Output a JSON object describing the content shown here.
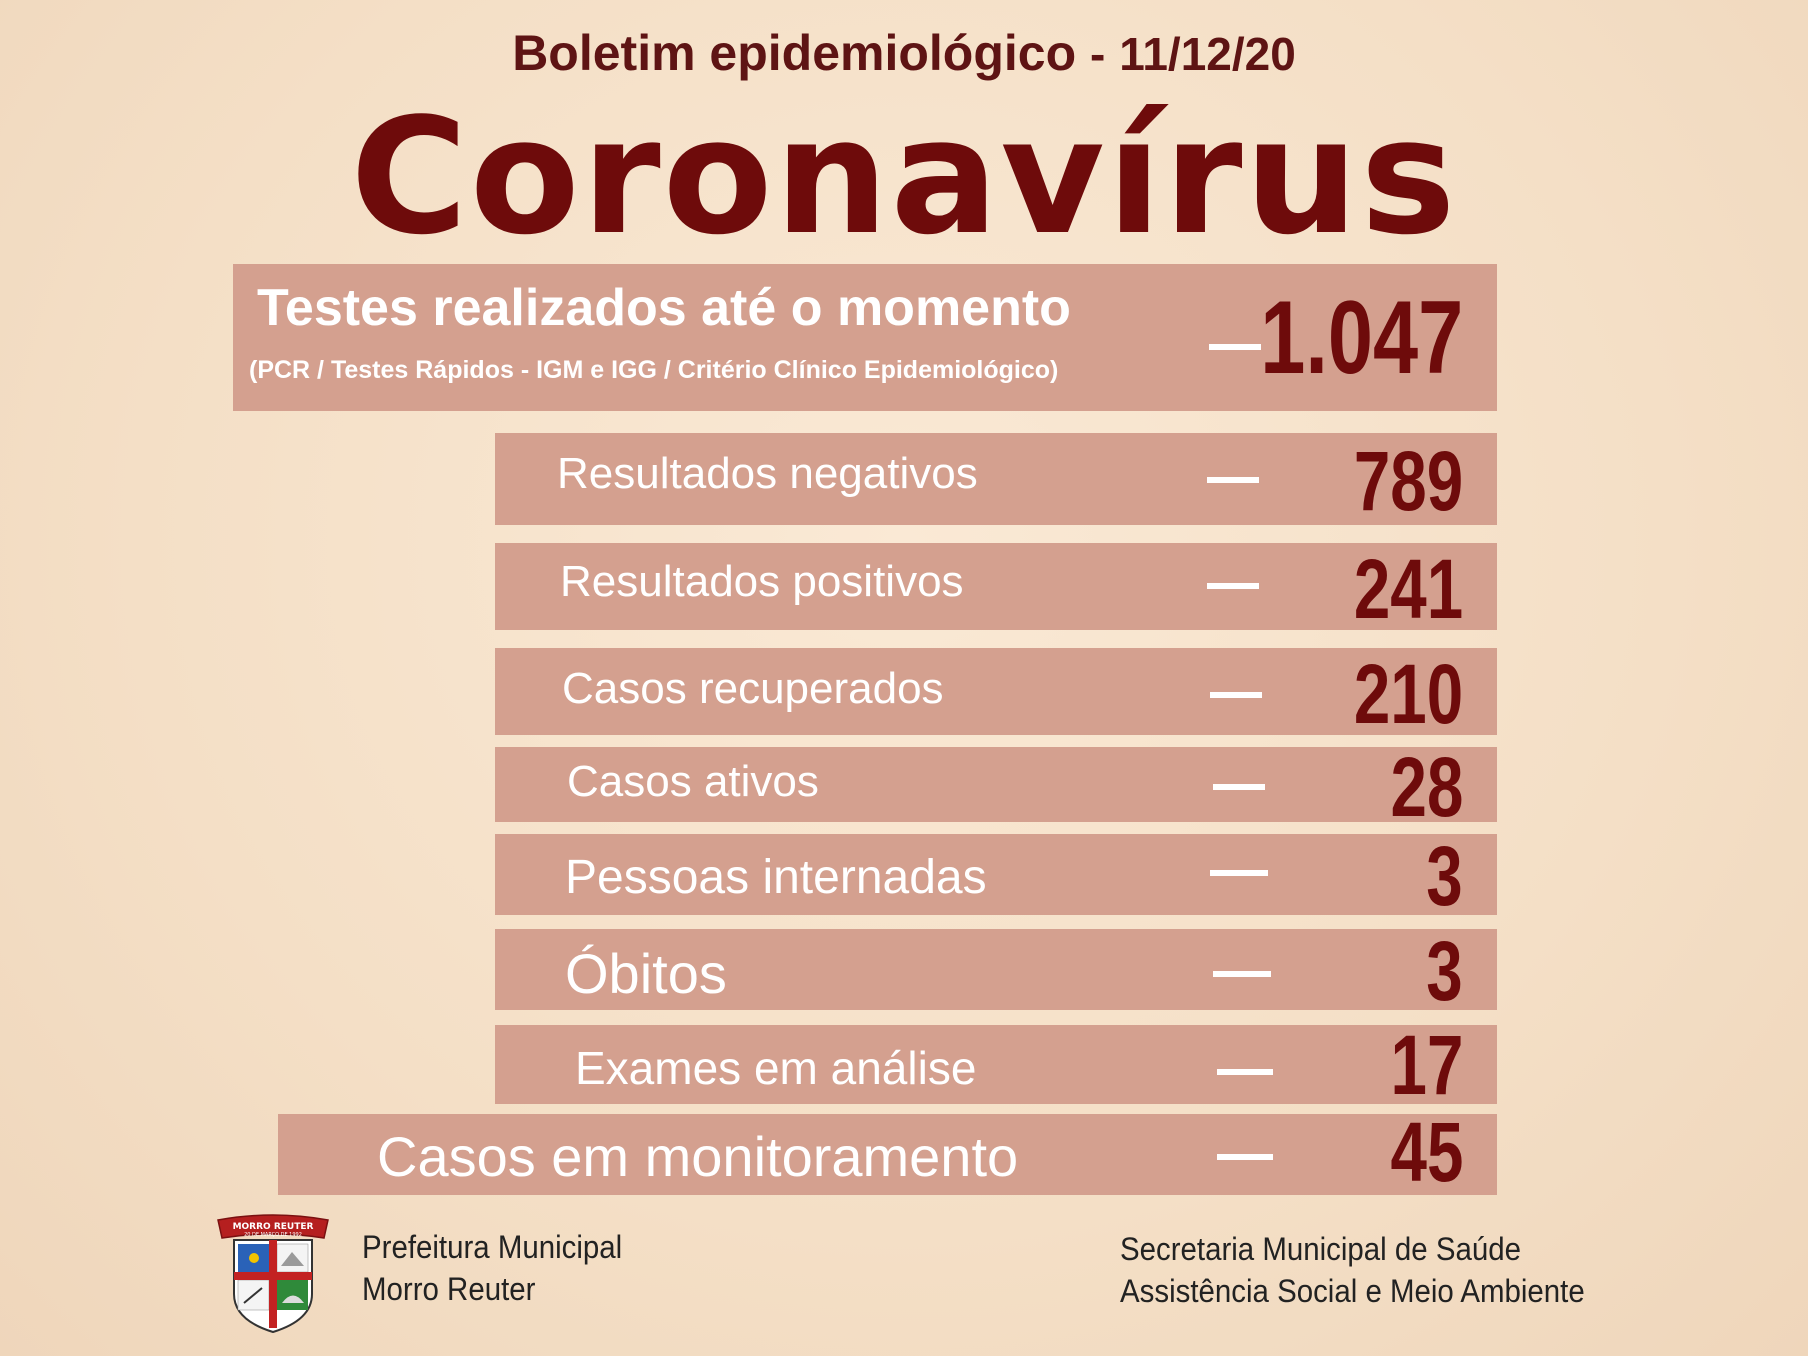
{
  "header": {
    "subtitle": "Boletim epidemiológico",
    "separator": "-",
    "date": "11/12/20",
    "title": "Coronavírus"
  },
  "tests": {
    "label": "Testes realizados até o momento",
    "note": "(PCR / Testes Rápidos - IGM e IGG / Critério Clínico Epidemiológico)",
    "value": "1.047"
  },
  "rows": [
    {
      "label": "Resultados negativos",
      "value": "789"
    },
    {
      "label": "Resultados positivos",
      "value": "241"
    },
    {
      "label": "Casos recuperados",
      "value": "210"
    },
    {
      "label": "Casos ativos",
      "value": "28"
    },
    {
      "label": "Pessoas internadas",
      "value": "3"
    },
    {
      "label": "Óbitos",
      "value": "3"
    },
    {
      "label": "Exames em análise",
      "value": "17"
    },
    {
      "label": "Casos em monitoramento",
      "value": "45"
    }
  ],
  "footer": {
    "left_line1": "Prefeitura Municipal",
    "left_line2": "Morro Reuter",
    "right_line1": "Secretaria Municipal de Saúde",
    "right_line2": "Assistência Social e Meio Ambiente",
    "crest_banner": "MORRO REUTER",
    "crest_date": "20 DE MARÇO DE 1992"
  },
  "colors": {
    "background": "#f6e3cc",
    "box": "#d4a08f",
    "value": "#6e0b0b",
    "title": "#6e0b0b"
  }
}
